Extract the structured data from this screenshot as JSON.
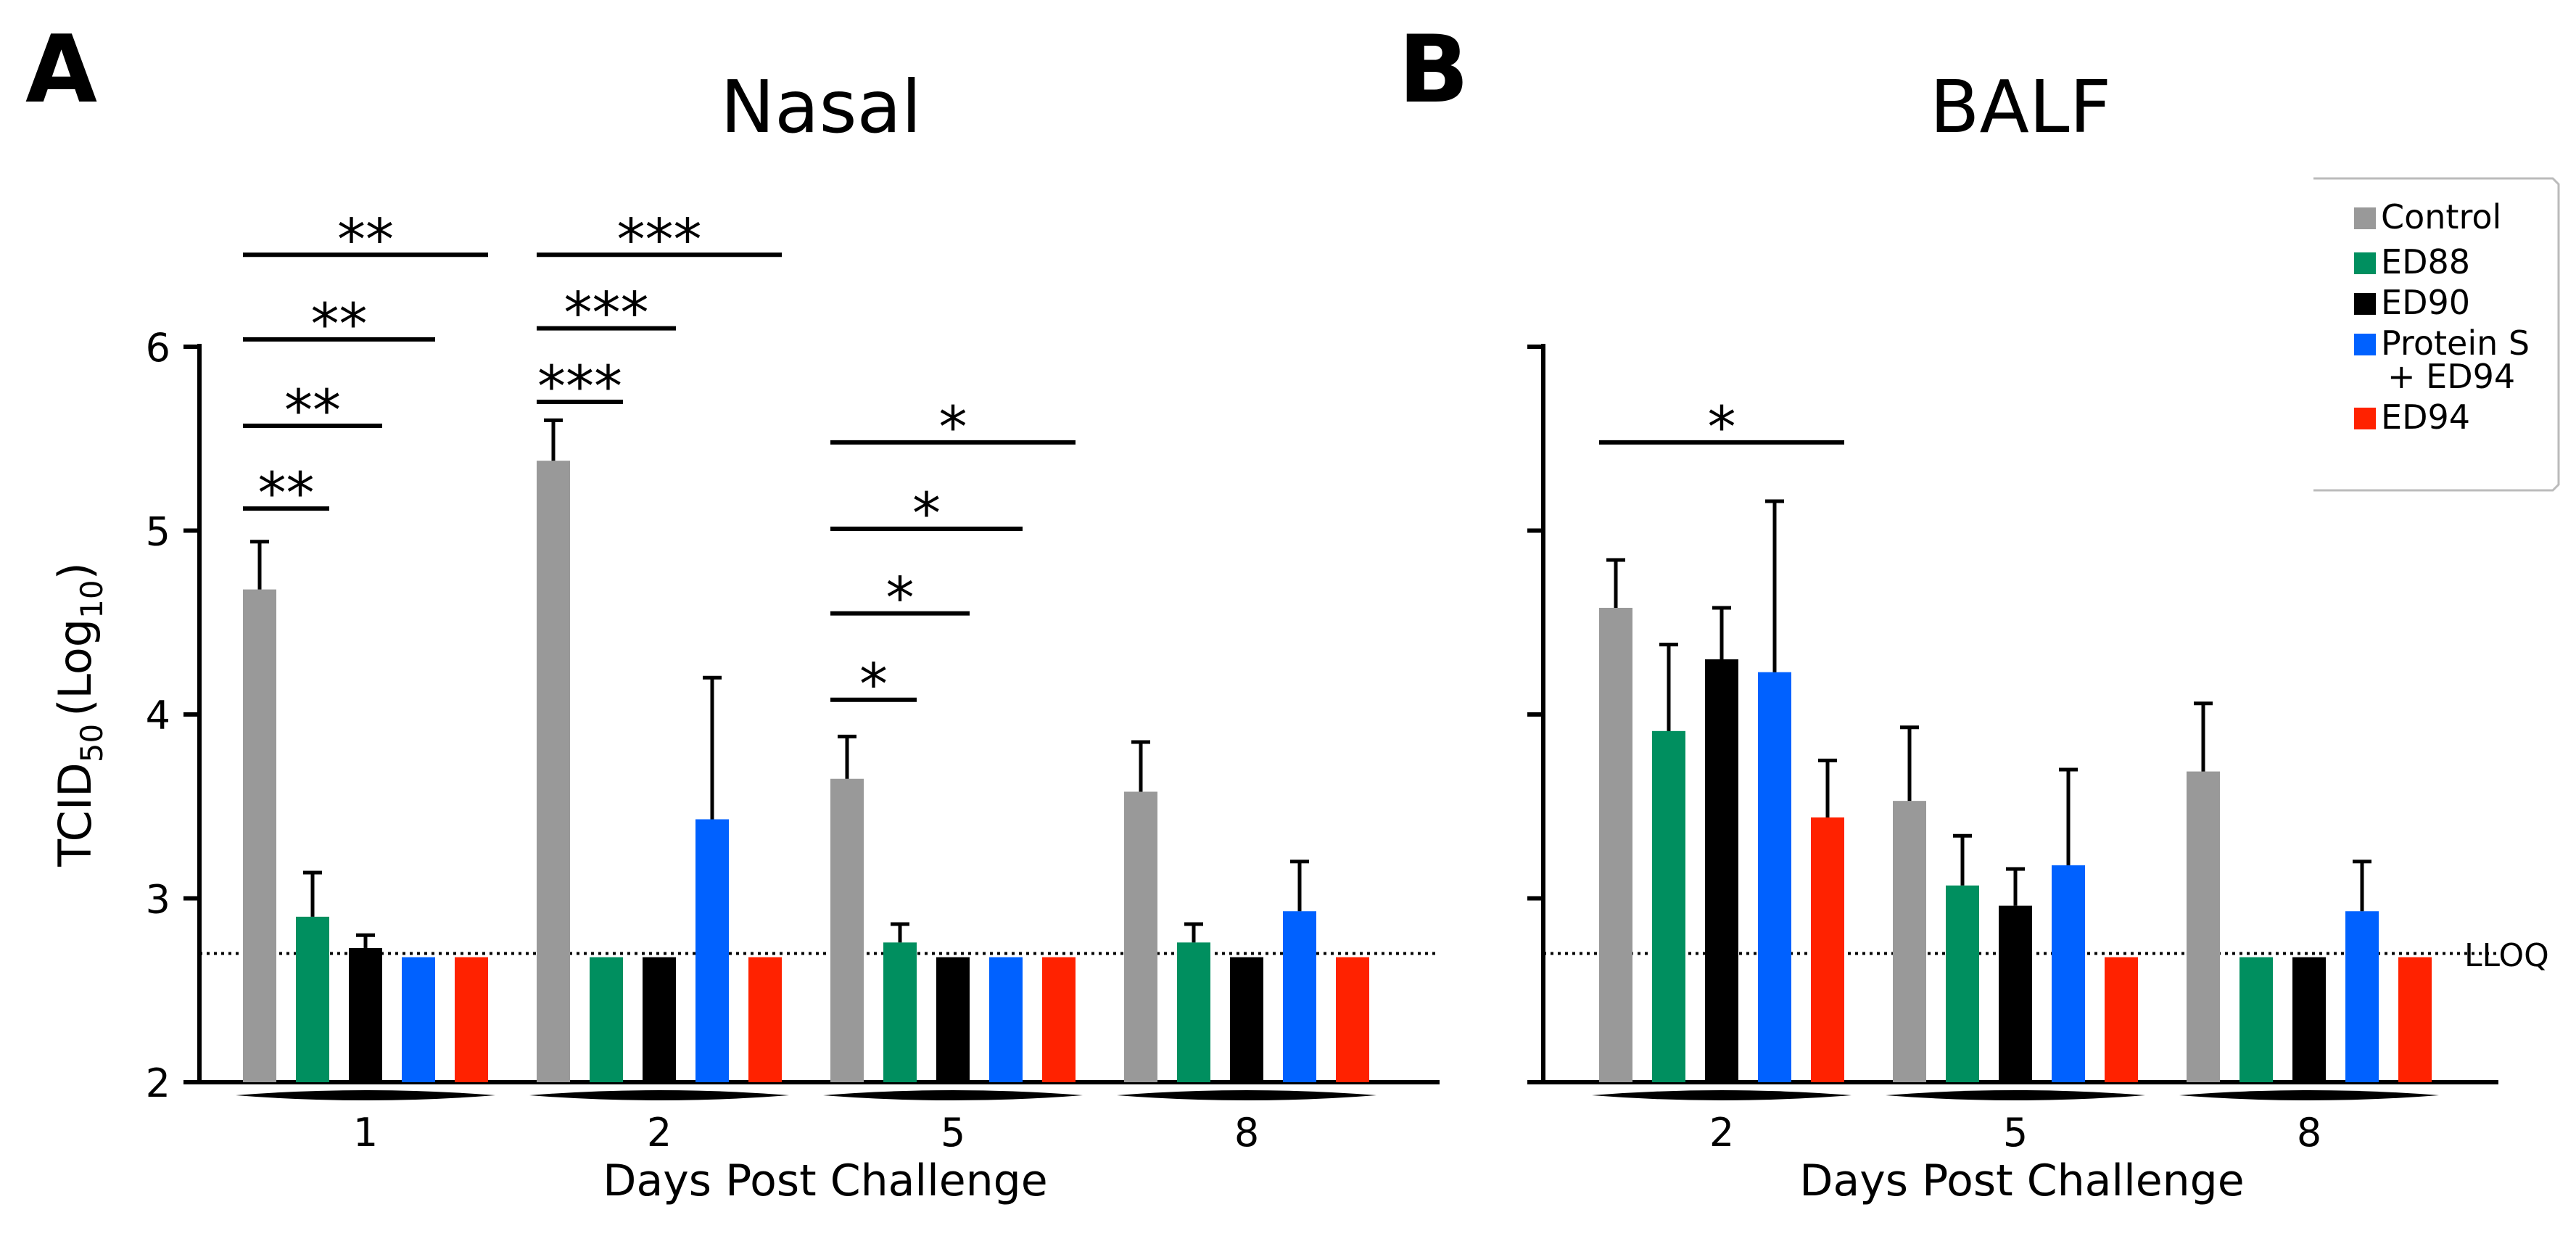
{
  "panel_a": {
    "letter": "A",
    "title": "Nasal"
  },
  "panel_b": {
    "letter": "B",
    "title": "BALF"
  },
  "legend": {
    "entries": [
      {
        "label": "Control",
        "color": "#999999"
      },
      {
        "label": "ED88",
        "color": "#008f5f"
      },
      {
        "label": "ED90",
        "color": "#000000"
      },
      {
        "label": "Protein S",
        "label2": "+ ED94",
        "color": "#0061ff"
      },
      {
        "label": "ED94",
        "color": "#ff2200"
      }
    ]
  },
  "lloq_label": "LLOQ",
  "chart_data": [
    {
      "type": "bar",
      "title": "Nasal",
      "ylabel": "TCID50 (Log10)",
      "ylabel_main": "TCID",
      "ylabel_sub": "50",
      "ylabel_paren": "(Log",
      "ylabel_sub2": "10",
      "ylabel_close": ")",
      "xlabel": "Days Post Challenge",
      "ylim": [
        2,
        6
      ],
      "yticks": [
        "2",
        "3",
        "4",
        "5",
        "6"
      ],
      "lloq": 2.7,
      "categories": [
        "1",
        "2",
        "5",
        "8"
      ],
      "series": [
        {
          "name": "Control",
          "values": [
            4.68,
            5.38,
            3.65,
            3.58
          ],
          "errors": [
            0.26,
            0.22,
            0.23,
            0.27
          ]
        },
        {
          "name": "ED88",
          "values": [
            2.9,
            2.68,
            2.76,
            2.76
          ],
          "errors": [
            0.24,
            0,
            0.1,
            0.1
          ]
        },
        {
          "name": "ED90",
          "values": [
            2.73,
            2.68,
            2.68,
            2.68
          ],
          "errors": [
            0.07,
            0,
            0,
            0
          ]
        },
        {
          "name": "Protein S + ED94",
          "values": [
            2.68,
            3.43,
            2.68,
            2.93
          ],
          "errors": [
            0,
            0.77,
            0,
            0.27
          ]
        },
        {
          "name": "ED94",
          "values": [
            2.68,
            2.68,
            2.68,
            2.68
          ],
          "errors": [
            0,
            0,
            0,
            0
          ]
        }
      ],
      "significance": [
        {
          "category": 0,
          "from": 0,
          "to": 1,
          "label": "**",
          "y": 5.12
        },
        {
          "category": 0,
          "from": 0,
          "to": 2,
          "label": "**",
          "y": 5.57
        },
        {
          "category": 0,
          "from": 0,
          "to": 3,
          "label": "**",
          "y": 6.04
        },
        {
          "category": 0,
          "from": 0,
          "to": 4,
          "label": "**",
          "y": 6.5
        },
        {
          "category": 1,
          "from": 0,
          "to": 1,
          "label": "***",
          "y": 5.7
        },
        {
          "category": 1,
          "from": 0,
          "to": 2,
          "label": "***",
          "y": 6.1
        },
        {
          "category": 1,
          "from": 0,
          "to": 4,
          "label": "***",
          "y": 6.5
        },
        {
          "category": 2,
          "from": 0,
          "to": 1,
          "label": "*",
          "y": 4.08
        },
        {
          "category": 2,
          "from": 0,
          "to": 2,
          "label": "*",
          "y": 4.55
        },
        {
          "category": 2,
          "from": 0,
          "to": 3,
          "label": "*",
          "y": 5.01
        },
        {
          "category": 2,
          "from": 0,
          "to": 4,
          "label": "*",
          "y": 5.48
        }
      ]
    },
    {
      "type": "bar",
      "title": "BALF",
      "xlabel": "Days Post Challenge",
      "ylim": [
        2,
        6
      ],
      "lloq": 2.7,
      "categories": [
        "2",
        "5",
        "8"
      ],
      "series": [
        {
          "name": "Control",
          "values": [
            4.58,
            3.53,
            3.69
          ],
          "errors": [
            0.26,
            0.4,
            0.37
          ]
        },
        {
          "name": "ED88",
          "values": [
            3.91,
            3.07,
            2.68
          ],
          "errors": [
            0.47,
            0.27,
            0
          ]
        },
        {
          "name": "ED90",
          "values": [
            4.3,
            2.96,
            2.68
          ],
          "errors": [
            0.28,
            0.2,
            0
          ]
        },
        {
          "name": "Protein S + ED94",
          "values": [
            4.23,
            3.18,
            2.93
          ],
          "errors": [
            0.93,
            0.52,
            0.27
          ]
        },
        {
          "name": "ED94",
          "values": [
            3.44,
            2.68,
            2.68
          ],
          "errors": [
            0.31,
            0,
            0
          ]
        }
      ],
      "significance": [
        {
          "category": 0,
          "from": 0,
          "to": 4,
          "label": "*",
          "y": 5.48
        }
      ]
    }
  ]
}
